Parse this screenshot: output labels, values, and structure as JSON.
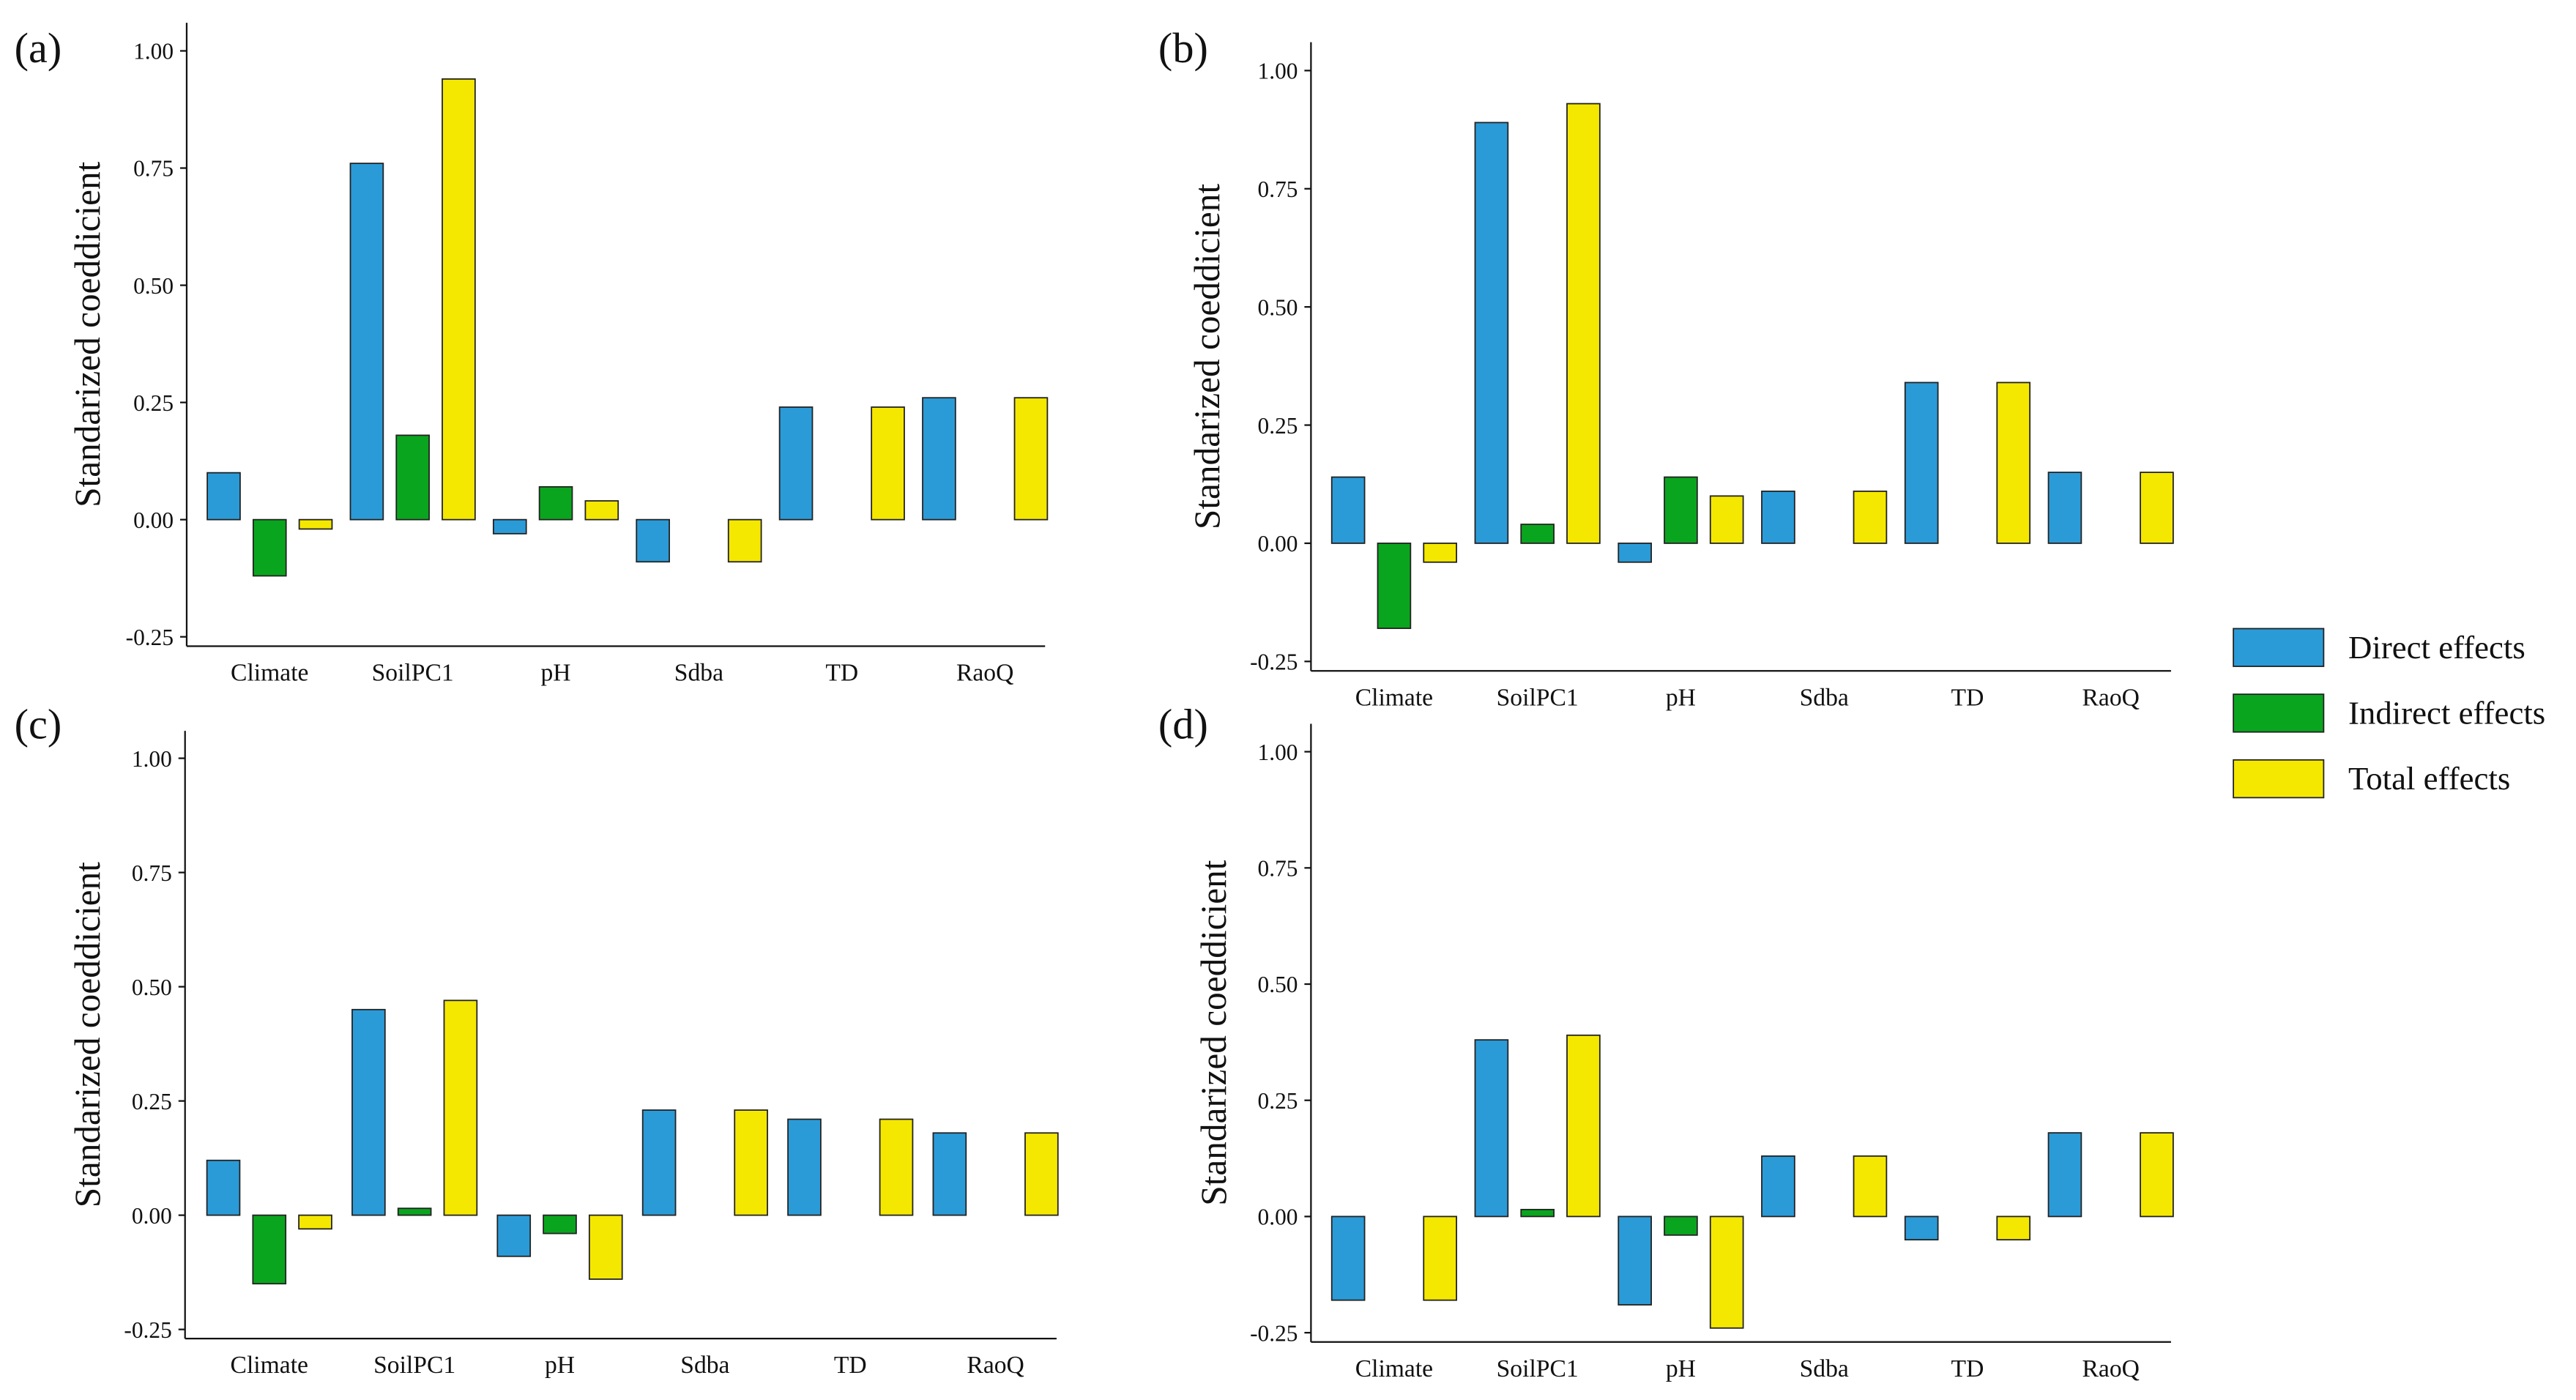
{
  "chart_data": [
    {
      "type": "bar",
      "label": "(a)",
      "y_label": "Standarized coeddicient",
      "categories": [
        "Climate",
        "SoilPC1",
        "pH",
        "Sdba",
        "TD",
        "RaoQ"
      ],
      "series": [
        {
          "name": "Direct effects",
          "color": "#2b9bd8",
          "values": [
            0.1,
            0.76,
            -0.03,
            -0.09,
            0.24,
            0.26
          ]
        },
        {
          "name": "Indirect effects",
          "color": "#0aa51e",
          "values": [
            -0.12,
            0.18,
            0.07,
            0,
            0,
            0
          ]
        },
        {
          "name": "Total effects",
          "color": "#f5e800",
          "values": [
            -0.02,
            0.94,
            0.04,
            -0.09,
            0.24,
            0.26
          ]
        }
      ],
      "ylim": [
        -0.27,
        1.06
      ],
      "yticks": [
        {
          "value": -0.25,
          "label": "-0.25"
        },
        {
          "value": 0,
          "label": "0.00"
        },
        {
          "value": 0.25,
          "label": "0.25"
        },
        {
          "value": 0.5,
          "label": "0.50"
        },
        {
          "value": 0.75,
          "label": "0.75"
        },
        {
          "value": 1,
          "label": "1.00"
        }
      ]
    },
    {
      "type": "bar",
      "label": "(b)",
      "y_label": "Standarized coeddicient",
      "categories": [
        "Climate",
        "SoilPC1",
        "pH",
        "Sdba",
        "TD",
        "RaoQ"
      ],
      "series": [
        {
          "name": "Direct effects",
          "color": "#2b9bd8",
          "values": [
            0.14,
            0.89,
            -0.04,
            0.11,
            0.34,
            0.15
          ]
        },
        {
          "name": "Indirect effects",
          "color": "#0aa51e",
          "values": [
            -0.18,
            0.04,
            0.14,
            0,
            0,
            0
          ]
        },
        {
          "name": "Total effects",
          "color": "#f5e800",
          "values": [
            -0.04,
            0.93,
            0.1,
            0.11,
            0.34,
            0.15
          ]
        }
      ],
      "ylim": [
        -0.27,
        1.06
      ],
      "yticks": [
        {
          "value": -0.25,
          "label": "-0.25"
        },
        {
          "value": 0,
          "label": "0.00"
        },
        {
          "value": 0.25,
          "label": "0.25"
        },
        {
          "value": 0.5,
          "label": "0.50"
        },
        {
          "value": 0.75,
          "label": "0.75"
        },
        {
          "value": 1,
          "label": "1.00"
        }
      ]
    },
    {
      "type": "bar",
      "label": "(c)",
      "y_label": "Standarized coeddicient",
      "categories": [
        "Climate",
        "SoilPC1",
        "pH",
        "Sdba",
        "TD",
        "RaoQ"
      ],
      "series": [
        {
          "name": "Direct effects",
          "color": "#2b9bd8",
          "values": [
            0.12,
            0.45,
            -0.09,
            0.23,
            0.21,
            0.18
          ]
        },
        {
          "name": "Indirect effects",
          "color": "#0aa51e",
          "values": [
            -0.15,
            0.015,
            -0.04,
            0,
            0,
            0
          ]
        },
        {
          "name": "Total effects",
          "color": "#f5e800",
          "values": [
            -0.03,
            0.47,
            -0.14,
            0.23,
            0.21,
            0.18
          ]
        }
      ],
      "ylim": [
        -0.27,
        1.06
      ],
      "yticks": [
        {
          "value": -0.25,
          "label": "-0.25"
        },
        {
          "value": 0,
          "label": "0.00"
        },
        {
          "value": 0.25,
          "label": "0.25"
        },
        {
          "value": 0.5,
          "label": "0.50"
        },
        {
          "value": 0.75,
          "label": "0.75"
        },
        {
          "value": 1,
          "label": "1.00"
        }
      ]
    },
    {
      "type": "bar",
      "label": "(d)",
      "y_label": "Standarized coeddicient",
      "categories": [
        "Climate",
        "SoilPC1",
        "pH",
        "Sdba",
        "TD",
        "RaoQ"
      ],
      "series": [
        {
          "name": "Direct effects",
          "color": "#2b9bd8",
          "values": [
            -0.18,
            0.38,
            -0.19,
            0.13,
            -0.05,
            0.18
          ]
        },
        {
          "name": "Indirect effects",
          "color": "#0aa51e",
          "values": [
            0,
            0.015,
            -0.04,
            0,
            0,
            0
          ]
        },
        {
          "name": "Total effects",
          "color": "#f5e800",
          "values": [
            -0.18,
            0.39,
            -0.24,
            0.13,
            -0.05,
            0.18
          ]
        }
      ],
      "ylim": [
        -0.27,
        1.06
      ],
      "yticks": [
        {
          "value": -0.25,
          "label": "-0.25"
        },
        {
          "value": 0,
          "label": "0.00"
        },
        {
          "value": 0.25,
          "label": "0.25"
        },
        {
          "value": 0.5,
          "label": "0.50"
        },
        {
          "value": 0.75,
          "label": "0.75"
        },
        {
          "value": 1,
          "label": "1.00"
        }
      ]
    }
  ]
}
